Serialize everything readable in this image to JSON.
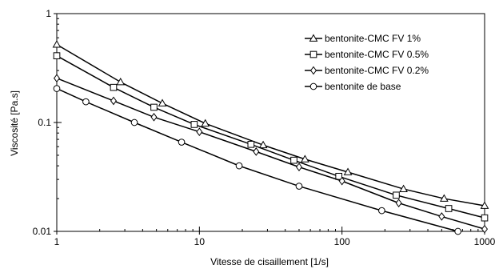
{
  "chart_data": {
    "type": "line",
    "xscale": "log",
    "yscale": "log",
    "xlim": [
      1,
      1000
    ],
    "ylim": [
      0.01,
      1
    ],
    "xlabel": "Vitesse de cisaillement [1/s]",
    "ylabel": "Viscosité [Pa.s]",
    "xticks": [
      "1",
      "10",
      "100",
      "1000"
    ],
    "yticks": [
      "0.01",
      "0.1",
      "1"
    ],
    "grid": false,
    "legend_position": "top-right",
    "series": [
      {
        "name": "bentonite-CMC FV 1%",
        "marker": "triangle",
        "x": [
          1,
          2.8,
          5.5,
          11,
          28,
          55,
          110,
          270,
          520,
          1000
        ],
        "y": [
          0.52,
          0.235,
          0.15,
          0.098,
          0.062,
          0.046,
          0.035,
          0.0245,
          0.02,
          0.0172
        ]
      },
      {
        "name": "bentonite-CMC FV 0.5%",
        "marker": "square",
        "x": [
          1,
          2.5,
          4.8,
          9.2,
          23,
          46,
          95,
          240,
          560,
          1000
        ],
        "y": [
          0.41,
          0.21,
          0.138,
          0.096,
          0.063,
          0.045,
          0.032,
          0.0215,
          0.0162,
          0.0133
        ]
      },
      {
        "name": "bentonite-CMC FV 0.2%",
        "marker": "diamond",
        "x": [
          1,
          2.5,
          4.8,
          10,
          25,
          50,
          100,
          250,
          500,
          1000
        ],
        "y": [
          0.255,
          0.158,
          0.112,
          0.082,
          0.054,
          0.039,
          0.029,
          0.0182,
          0.0137,
          0.0105
        ]
      },
      {
        "name": "bentonite de base",
        "marker": "circle",
        "x": [
          1,
          1.6,
          3.5,
          7.5,
          19,
          50,
          190,
          650
        ],
        "y": [
          0.205,
          0.155,
          0.1,
          0.066,
          0.04,
          0.026,
          0.0155,
          0.01
        ]
      }
    ]
  }
}
